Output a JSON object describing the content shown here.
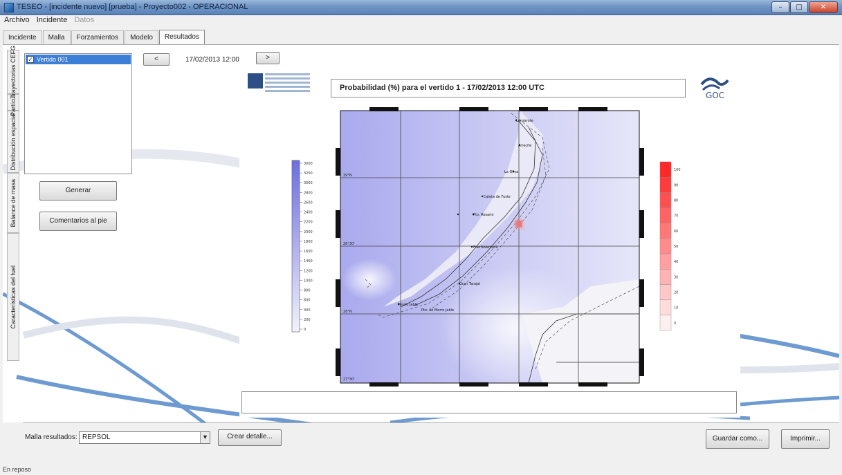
{
  "window": {
    "title": "TESEO - [incidente nuevo] [prueba] - Proyecto002 - OPERACIONAL",
    "controls": [
      "minimize",
      "maximize",
      "close"
    ]
  },
  "menu": {
    "items": [
      "Archivo",
      "Incidente",
      "Datos"
    ],
    "disabled": [
      "Datos"
    ]
  },
  "tabs": [
    "Incidente",
    "Malla",
    "Forzamientos",
    "Modelo",
    "Resultados"
  ],
  "active_tab": "Resultados",
  "vertical_tabs": [
    "Características del fuel",
    "Balance de masa",
    "Distribución espacial",
    "Partículas",
    "Trayectorias CEFG"
  ],
  "results_list": [
    {
      "label": "Vertido 001",
      "checked": true
    }
  ],
  "nav": {
    "prev_label": "<",
    "next_label": ">",
    "datetime": "17/02/2013 12:00"
  },
  "buttons": {
    "generar": "Generar",
    "comentarios": "Comentarios al pie",
    "crear_detalle": "Crear detalle...",
    "guardar_como": "Guardar como...",
    "imprimir": "Imprimir..."
  },
  "map": {
    "title": "Probabilidad (%) para el vertido 1 - 17/02/2013 12:00 UTC",
    "org_logo_text": "GOC",
    "depth_scale": [
      "3000",
      "3200",
      "3000",
      "2800",
      "2600",
      "2400",
      "2200",
      "2000",
      "1800",
      "1600",
      "1400",
      "1200",
      "1000",
      "800",
      "600",
      "400",
      "200",
      "0"
    ],
    "prob_scale": [
      "100",
      "90",
      "80",
      "70",
      "60",
      "50",
      "40",
      "30",
      "20",
      "10",
      "0"
    ],
    "lat_labels": [
      "29°N",
      "28°30'",
      "28°N",
      "27°30'"
    ],
    "place_labels": [
      "Lanzarote",
      "Arrecife",
      "Pto. Rosario",
      "Fuerteventura",
      "Gran Tarajal",
      "Morro Jable",
      "Pto. de Morro Jable",
      "La Oliva",
      "Caleta de Fuste"
    ]
  },
  "bottom": {
    "malla_label": "Malla resultados:",
    "malla_value": "REPSOL"
  },
  "status": "En reposo"
}
